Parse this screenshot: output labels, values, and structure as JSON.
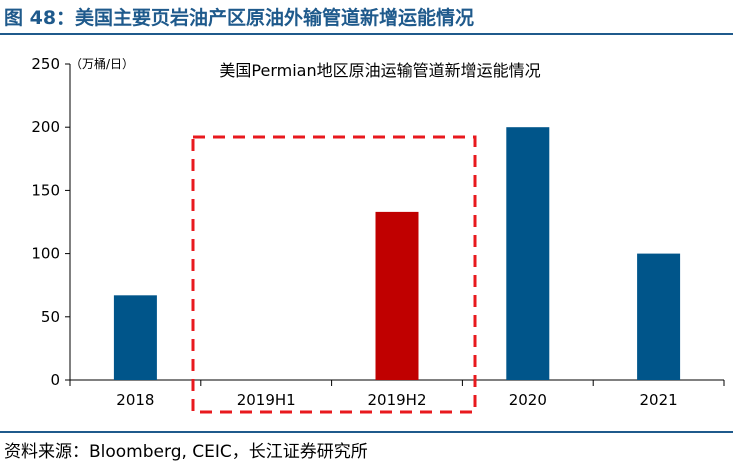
{
  "figure_title": "图 48：美国主要页岩油产区原油外输管道新增运能情况",
  "source": "资料来源：Bloomberg, CEIC，长江证券研究所",
  "colors": {
    "primary": "#00558a",
    "highlight": "#c00000",
    "rule": "#1f5a8c",
    "box": "#e8191e"
  },
  "chart_data": {
    "type": "bar",
    "title": "美国Permian地区原油运输管道新增运能情况",
    "unit_label": "（万桶/日）",
    "categories": [
      "2018",
      "2019H1",
      "2019H2",
      "2020",
      "2021"
    ],
    "values": [
      67,
      0,
      133,
      200,
      100
    ],
    "bar_colors": [
      "#00558a",
      "#00558a",
      "#c00000",
      "#00558a",
      "#00558a"
    ],
    "ylim": [
      0,
      250
    ],
    "yticks": [
      0,
      50,
      100,
      150,
      200,
      250
    ],
    "highlight_categories": [
      "2019H1",
      "2019H2"
    ],
    "grid": false
  }
}
